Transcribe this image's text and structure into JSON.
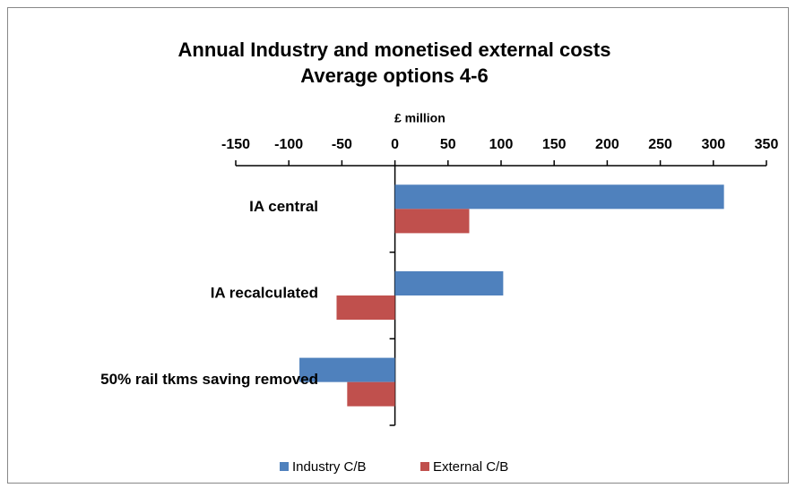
{
  "chart_data": {
    "type": "hbar",
    "title": [
      "Annual Industry and monetised external costs",
      "Average options 4-6"
    ],
    "x_label": "£ million",
    "categories": [
      "IA central",
      "IA recalculated",
      "50% rail tkms saving removed"
    ],
    "series": [
      {
        "name": "Industry C/B",
        "color": "#4f81bd",
        "values": [
          310,
          102,
          -90
        ]
      },
      {
        "name": "External C/B",
        "color": "#c0504d",
        "values": [
          70,
          -55,
          -45
        ]
      }
    ],
    "xlim": [
      -150,
      350
    ],
    "xticks": [
      -150,
      -100,
      -50,
      0,
      50,
      100,
      150,
      200,
      250,
      300,
      350
    ],
    "legend": "bottom"
  }
}
